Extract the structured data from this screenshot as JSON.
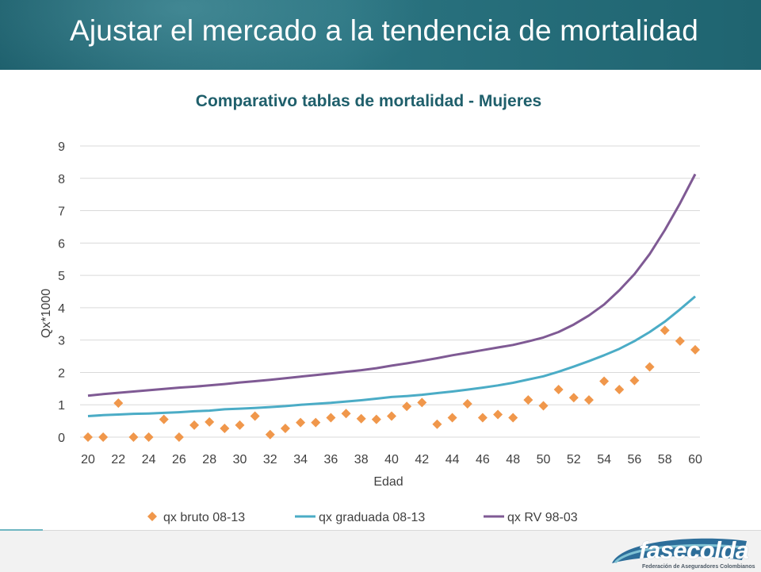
{
  "slide": {
    "title": "Ajustar el mercado a la tendencia de mortalidad"
  },
  "logo": {
    "text": "fasecolda",
    "subtext": "Federación de Aseguradores Colombianos"
  },
  "colors": {
    "header": "#236a76",
    "bruto": "#f0974b",
    "graduada": "#4bacc6",
    "rv": "#7f5a94",
    "title": "#1f5f6b"
  },
  "chart_data": {
    "type": "line",
    "title": "Comparativo tablas de mortalidad - Mujeres",
    "xlabel": "Edad",
    "ylabel": "Qx*1000",
    "xlim": [
      20,
      60
    ],
    "ylim": [
      0,
      9
    ],
    "xticks": [
      "20",
      "22",
      "24",
      "26",
      "28",
      "30",
      "32",
      "34",
      "36",
      "38",
      "40",
      "42",
      "44",
      "46",
      "48",
      "50",
      "52",
      "54",
      "56",
      "58",
      "60"
    ],
    "yticks": [
      "0",
      "1",
      "2",
      "3",
      "4",
      "5",
      "6",
      "7",
      "8",
      "9"
    ],
    "grid": "horizontal",
    "legend": "bottom",
    "x": [
      20,
      21,
      22,
      23,
      24,
      25,
      26,
      27,
      28,
      29,
      30,
      31,
      32,
      33,
      34,
      35,
      36,
      37,
      38,
      39,
      40,
      41,
      42,
      43,
      44,
      45,
      46,
      47,
      48,
      49,
      50,
      51,
      52,
      53,
      54,
      55,
      56,
      57,
      58,
      59,
      60
    ],
    "series": [
      {
        "name": "qx bruto 08-13",
        "style": "markers",
        "values": [
          0.0,
          0.0,
          1.05,
          0.0,
          0.0,
          0.55,
          0.0,
          0.37,
          0.47,
          0.27,
          0.37,
          0.65,
          0.08,
          0.27,
          0.45,
          0.45,
          0.6,
          0.73,
          0.57,
          0.55,
          0.65,
          0.95,
          1.07,
          0.4,
          0.6,
          1.03,
          0.6,
          0.7,
          0.6,
          1.15,
          0.97,
          1.47,
          1.22,
          1.15,
          1.73,
          1.47,
          1.75,
          2.17,
          3.3,
          2.97,
          2.7
        ]
      },
      {
        "name": "qx graduada 08-13",
        "style": "line",
        "values": [
          0.65,
          0.68,
          0.7,
          0.72,
          0.73,
          0.75,
          0.77,
          0.8,
          0.82,
          0.86,
          0.88,
          0.9,
          0.93,
          0.96,
          1.0,
          1.03,
          1.06,
          1.1,
          1.14,
          1.19,
          1.24,
          1.27,
          1.31,
          1.36,
          1.41,
          1.47,
          1.53,
          1.6,
          1.68,
          1.78,
          1.88,
          2.02,
          2.18,
          2.35,
          2.53,
          2.73,
          2.97,
          3.25,
          3.57,
          3.95,
          4.35
        ]
      },
      {
        "name": "qx RV 98-03",
        "style": "line",
        "values": [
          1.28,
          1.33,
          1.37,
          1.41,
          1.45,
          1.49,
          1.53,
          1.56,
          1.6,
          1.64,
          1.69,
          1.73,
          1.77,
          1.82,
          1.87,
          1.92,
          1.97,
          2.02,
          2.07,
          2.13,
          2.21,
          2.28,
          2.36,
          2.44,
          2.53,
          2.61,
          2.69,
          2.77,
          2.85,
          2.96,
          3.08,
          3.25,
          3.48,
          3.76,
          4.1,
          4.54,
          5.04,
          5.66,
          6.4,
          7.23,
          8.13
        ]
      }
    ]
  }
}
